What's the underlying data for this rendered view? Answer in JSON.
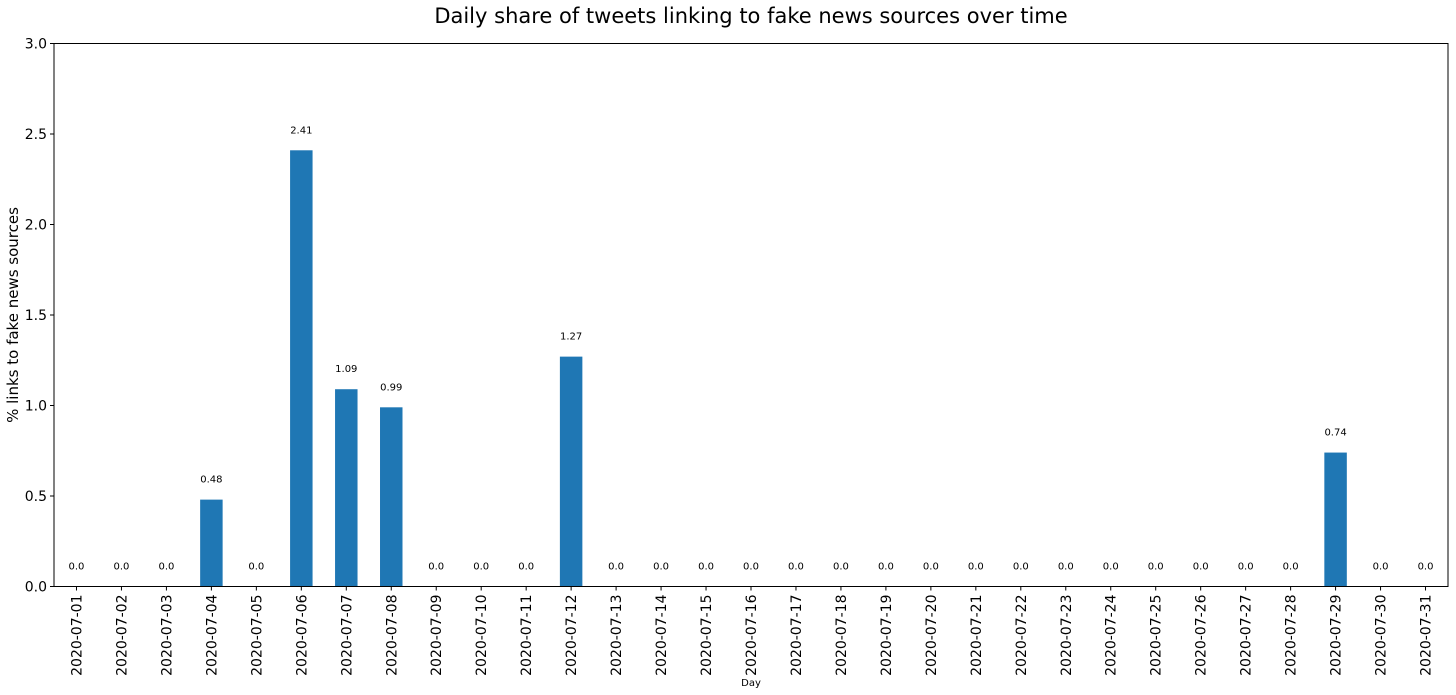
{
  "chart_data": {
    "type": "bar",
    "title": "Daily share of tweets linking to fake news sources over time",
    "xlabel": "Day",
    "ylabel": "% links to fake news sources",
    "ylim": [
      0,
      3.0
    ],
    "yticks": [
      "0.0",
      "0.5",
      "1.0",
      "1.5",
      "2.0",
      "2.5",
      "3.0"
    ],
    "grid": false,
    "bar_color": "#1f77b4",
    "categories": [
      "2020-07-01",
      "2020-07-02",
      "2020-07-03",
      "2020-07-04",
      "2020-07-05",
      "2020-07-06",
      "2020-07-07",
      "2020-07-08",
      "2020-07-09",
      "2020-07-10",
      "2020-07-11",
      "2020-07-12",
      "2020-07-13",
      "2020-07-14",
      "2020-07-15",
      "2020-07-16",
      "2020-07-17",
      "2020-07-18",
      "2020-07-19",
      "2020-07-20",
      "2020-07-21",
      "2020-07-22",
      "2020-07-23",
      "2020-07-24",
      "2020-07-25",
      "2020-07-26",
      "2020-07-27",
      "2020-07-28",
      "2020-07-29",
      "2020-07-30",
      "2020-07-31"
    ],
    "values": [
      0.0,
      0.0,
      0.0,
      0.48,
      0.0,
      2.41,
      1.09,
      0.99,
      0.0,
      0.0,
      0.0,
      1.27,
      0.0,
      0.0,
      0.0,
      0.0,
      0.0,
      0.0,
      0.0,
      0.0,
      0.0,
      0.0,
      0.0,
      0.0,
      0.0,
      0.0,
      0.0,
      0.0,
      0.74,
      0.0,
      0.0
    ],
    "data_labels": [
      "0.0",
      "0.0",
      "0.0",
      "0.48",
      "0.0",
      "2.41",
      "1.09",
      "0.99",
      "0.0",
      "0.0",
      "0.0",
      "1.27",
      "0.0",
      "0.0",
      "0.0",
      "0.0",
      "0.0",
      "0.0",
      "0.0",
      "0.0",
      "0.0",
      "0.0",
      "0.0",
      "0.0",
      "0.0",
      "0.0",
      "0.0",
      "0.0",
      "0.74",
      "0.0",
      "0.0"
    ]
  }
}
